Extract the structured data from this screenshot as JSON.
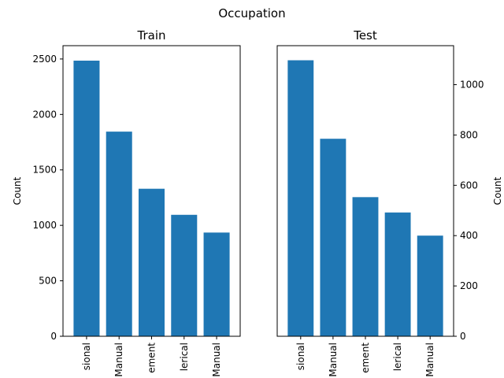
{
  "figure_title": "Occupation",
  "chart_data": [
    {
      "type": "bar",
      "title": "Train",
      "ylabel": "Count",
      "ylabel_side": "left",
      "categories": [
        "sional",
        "Manual",
        "ement",
        "lerical",
        "Manual"
      ],
      "values": [
        2485,
        1845,
        1330,
        1095,
        935
      ],
      "ylim": [
        0,
        2620
      ],
      "yticks": [
        0,
        500,
        1000,
        1500,
        2000,
        2500
      ],
      "grid": false
    },
    {
      "type": "bar",
      "title": "Test",
      "ylabel": "Count",
      "ylabel_side": "right",
      "categories": [
        "sional",
        "Manual",
        "ement",
        "lerical",
        "Manual"
      ],
      "values": [
        1097,
        785,
        553,
        492,
        400
      ],
      "ylim": [
        0,
        1155
      ],
      "yticks": [
        0,
        200,
        400,
        600,
        800,
        1000
      ],
      "grid": false
    }
  ]
}
